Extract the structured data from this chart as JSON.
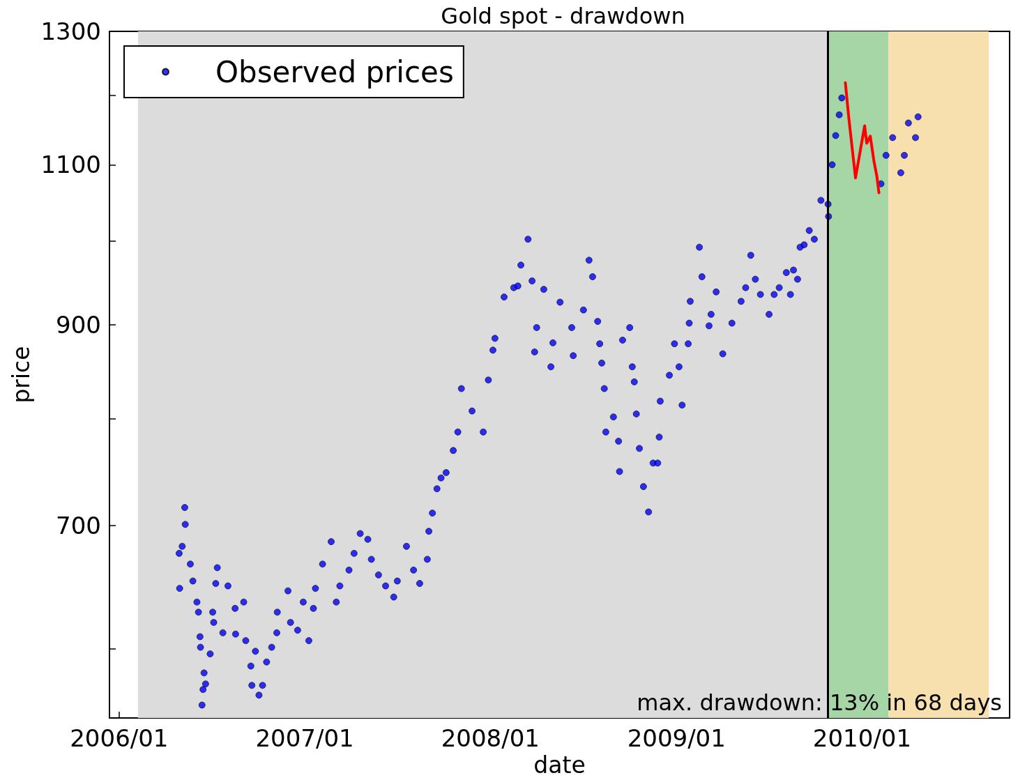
{
  "chart_data": {
    "type": "scatter",
    "title": "Gold spot - drawdown",
    "xlabel": "date",
    "ylabel": "price",
    "xlim": [
      "2005-12-13",
      "2010-10-18"
    ],
    "xticks": [
      {
        "value": "2006-01-01",
        "label": "2006/01"
      },
      {
        "value": "2007-01-01",
        "label": "2007/01"
      },
      {
        "value": "2008-01-01",
        "label": "2008/01"
      },
      {
        "value": "2009-01-01",
        "label": "2009/01"
      },
      {
        "value": "2010-01-01",
        "label": "2010/01"
      }
    ],
    "ylim": [
      550,
      1300
    ],
    "yticks": [
      {
        "value": 600,
        "label": null
      },
      700,
      {
        "value": 800,
        "label": null
      },
      900,
      {
        "value": 1000,
        "label": null
      },
      1100,
      {
        "value": 1200,
        "label": null
      },
      1300
    ],
    "log": "y",
    "grid": false,
    "legend": "top left",
    "marker": "circle",
    "bands": [
      {
        "axis": "x",
        "from": "2006-02-07",
        "to": "2009-10-25",
        "color": "#dcdcdc"
      },
      {
        "axis": "x",
        "from": "2009-10-25",
        "to": "2010-02-22",
        "color": "#a6d6a6"
      },
      {
        "axis": "x",
        "from": "2010-02-22",
        "to": "2010-09-07",
        "color": "#f8dfae"
      }
    ],
    "ref_lines": [
      {
        "axis": "x",
        "value": "2009-10-25",
        "color": "#000000"
      }
    ],
    "annotations": [
      "max. drawdown: 13% in 68 days"
    ],
    "series": [
      {
        "name": "Observed prices",
        "color": "#0000ff",
        "x": [
          "2006-04-29",
          "2006-04-30",
          "2006-05-05",
          "2006-05-10",
          "2006-05-11",
          "2006-05-21",
          "2006-05-26",
          "2006-06-03",
          "2006-06-06",
          "2006-06-09",
          "2006-06-10",
          "2006-06-13",
          "2006-06-15",
          "2006-06-17",
          "2006-06-20",
          "2006-06-29",
          "2006-07-04",
          "2006-07-06",
          "2006-07-10",
          "2006-07-13",
          "2006-07-24",
          "2006-08-03",
          "2006-08-17",
          "2006-08-18",
          "2006-09-03",
          "2006-09-07",
          "2006-09-17",
          "2006-09-19",
          "2006-09-26",
          "2006-10-03",
          "2006-10-10",
          "2006-10-18",
          "2006-10-28",
          "2006-11-07",
          "2006-11-08",
          "2006-11-29",
          "2006-12-04",
          "2006-12-18",
          "2006-12-29",
          "2007-01-09",
          "2007-01-18",
          "2007-01-22",
          "2007-02-05",
          "2007-02-22",
          "2007-03-04",
          "2007-03-11",
          "2007-03-29",
          "2007-04-08",
          "2007-04-20",
          "2007-05-05",
          "2007-05-12",
          "2007-05-26",
          "2007-06-09",
          "2007-06-25",
          "2007-07-02",
          "2007-07-20",
          "2007-08-03",
          "2007-08-15",
          "2007-08-30",
          "2007-09-02",
          "2007-09-09",
          "2007-09-18",
          "2007-09-26",
          "2007-10-06",
          "2007-10-20",
          "2007-10-29",
          "2007-11-05",
          "2007-11-26",
          "2007-12-18",
          "2007-12-28",
          "2008-01-06",
          "2008-01-10",
          "2008-01-28",
          "2008-02-16",
          "2008-02-24",
          "2008-03-01",
          "2008-03-15",
          "2008-03-23",
          "2008-03-28",
          "2008-04-01",
          "2008-04-15",
          "2008-04-29",
          "2008-05-03",
          "2008-05-17",
          "2008-06-09",
          "2008-06-12",
          "2008-07-02",
          "2008-07-13",
          "2008-07-20",
          "2008-07-30",
          "2008-08-03",
          "2008-08-07",
          "2008-08-12",
          "2008-08-15",
          "2008-08-30",
          "2008-09-09",
          "2008-09-11",
          "2008-09-17",
          "2008-10-01",
          "2008-10-06",
          "2008-10-10",
          "2008-10-14",
          "2008-10-20",
          "2008-10-28",
          "2008-11-07",
          "2008-11-16",
          "2008-11-25",
          "2008-11-28",
          "2008-11-30",
          "2008-12-18",
          "2008-12-28",
          "2009-01-06",
          "2009-01-12",
          "2009-01-24",
          "2009-01-26",
          "2009-01-28",
          "2009-02-15",
          "2009-02-20",
          "2009-03-06",
          "2009-03-10",
          "2009-03-20",
          "2009-04-02",
          "2009-04-20",
          "2009-05-08",
          "2009-05-17",
          "2009-05-27",
          "2009-06-05",
          "2009-06-15",
          "2009-07-02",
          "2009-07-12",
          "2009-07-22",
          "2009-08-05",
          "2009-08-13",
          "2009-08-19",
          "2009-08-27",
          "2009-09-01",
          "2009-09-09",
          "2009-09-19",
          "2009-09-29",
          "2009-10-12",
          "2009-10-26",
          "2009-10-27",
          "2009-11-03",
          "2009-11-10",
          "2009-11-17",
          "2009-11-22",
          "2010-02-07",
          "2010-02-17",
          "2010-03-02",
          "2010-03-18",
          "2010-03-25",
          "2010-04-02",
          "2010-04-16",
          "2010-04-21"
        ],
        "values": [
          676,
          647,
          682,
          716,
          701,
          667,
          653,
          636,
          628,
          609,
          601,
          559,
          570,
          582,
          574,
          596,
          628,
          620,
          651,
          664,
          612,
          649,
          631,
          611,
          636,
          606,
          587,
          573,
          598,
          566,
          573,
          590,
          601,
          612,
          628,
          645,
          620,
          614,
          636,
          606,
          631,
          647,
          667,
          686,
          636,
          649,
          662,
          676,
          693,
          688,
          671,
          658,
          649,
          640,
          653,
          682,
          662,
          651,
          671,
          695,
          711,
          733,
          743,
          748,
          769,
          787,
          831,
          808,
          787,
          840,
          872,
          885,
          932,
          943,
          945,
          970,
          1002,
          951,
          870,
          897,
          941,
          854,
          880,
          926,
          897,
          866,
          917,
          976,
          956,
          904,
          879,
          858,
          831,
          787,
          802,
          778,
          749,
          883,
          897,
          854,
          838,
          805,
          771,
          735,
          712,
          757,
          757,
          782,
          818,
          845,
          879,
          854,
          814,
          879,
          902,
          927,
          992,
          956,
          899,
          912,
          938,
          868,
          902,
          927,
          943,
          982,
          953,
          935,
          912,
          935,
          943,
          961,
          935,
          964,
          953,
          992,
          995,
          1013,
          1002,
          1052,
          1047,
          1031,
          1100,
          1141,
          1171,
          1196,
          1074,
          1113,
          1138,
          1089,
          1113,
          1159,
          1138,
          1168
        ]
      },
      {
        "type": "line",
        "color": "#ff0000",
        "marker": "none",
        "x": [
          "2009-11-29",
          "2009-12-06",
          "2009-12-19",
          "2010-01-06",
          "2010-01-10",
          "2010-01-17",
          "2010-01-24",
          "2010-01-30",
          "2010-02-03"
        ],
        "values": [
          1219,
          1165,
          1082,
          1155,
          1130,
          1140,
          1106,
          1084,
          1062
        ]
      }
    ]
  }
}
